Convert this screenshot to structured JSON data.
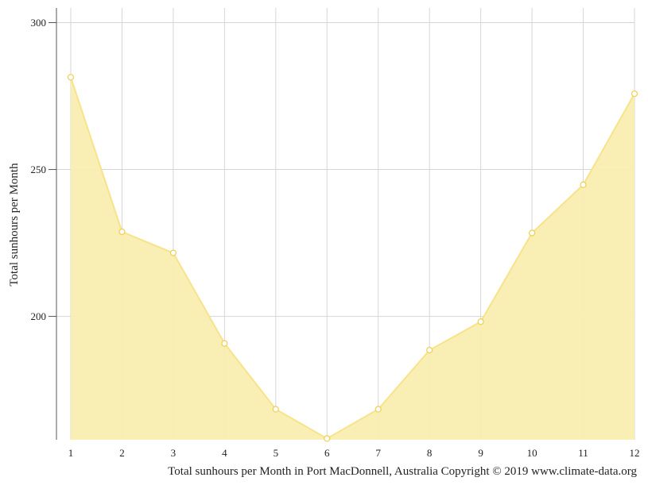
{
  "chart_data": {
    "type": "area",
    "title": "",
    "xlabel": "",
    "ylabel": "Total sunhours per Month",
    "caption": "Total sunhours per Month in Port MacDonnell, Australia Copyright © 2019 www.climate-data.org",
    "x": [
      1,
      2,
      3,
      4,
      5,
      6,
      7,
      8,
      9,
      10,
      11,
      12
    ],
    "x_tick_labels": [
      "1",
      "2",
      "3",
      "4",
      "5",
      "6",
      "7",
      "8",
      "9",
      "10",
      "11",
      "12"
    ],
    "y_tick_labels": [
      "200",
      "250",
      "300"
    ],
    "yticks": [
      200,
      250,
      300
    ],
    "ylim": [
      158,
      305
    ],
    "series": [
      {
        "values": [
          281.4,
          228.8,
          221.6,
          190.8,
          168.4,
          158.4,
          168.4,
          188.5,
          198.2,
          228.4,
          244.8,
          275.8
        ]
      }
    ],
    "grid": true,
    "colors": {
      "fill": "#f9edb0",
      "line": "#f7e38b",
      "marker_stroke": "#f0cf50",
      "grid": "#d6d6d6",
      "axis": "#555555"
    }
  }
}
